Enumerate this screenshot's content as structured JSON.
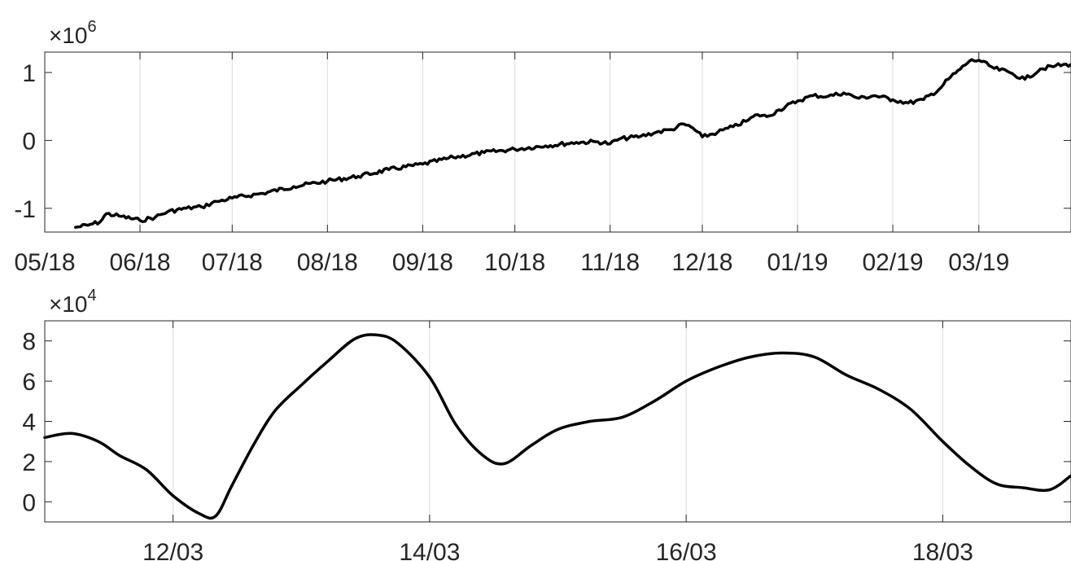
{
  "chart_data": [
    {
      "type": "line",
      "title": "",
      "xlabel": "",
      "ylabel": "",
      "y_exponent_label": {
        "base": "×10",
        "power": "6"
      },
      "x_axis": {
        "type": "date",
        "ticks": [
          "05/18",
          "06/18",
          "07/18",
          "08/18",
          "09/18",
          "10/18",
          "11/18",
          "12/18",
          "01/19",
          "02/19",
          "03/19"
        ]
      },
      "xlim": [
        "2018-05-01",
        "2019-03-31"
      ],
      "ylim": [
        -1.35,
        1.3
      ],
      "y_ticks": [
        -1,
        0,
        1
      ],
      "y_tick_labels": [
        "-1",
        "0",
        "1"
      ],
      "grid": {
        "x": true,
        "y": false
      },
      "series": [
        {
          "color": "#000000",
          "x": [
            "2018-05-11",
            "2018-05-15",
            "2018-05-19",
            "2018-05-21",
            "2018-05-26",
            "2018-06-01",
            "2018-06-06",
            "2018-06-10",
            "2018-06-16",
            "2018-06-21",
            "2018-06-26",
            "2018-07-01",
            "2018-07-11",
            "2018-07-21",
            "2018-08-01",
            "2018-08-11",
            "2018-08-21",
            "2018-09-01",
            "2018-09-11",
            "2018-09-21",
            "2018-10-01",
            "2018-10-11",
            "2018-10-21",
            "2018-10-28",
            "2018-11-01",
            "2018-11-04",
            "2018-11-11",
            "2018-11-16",
            "2018-11-21",
            "2018-11-25",
            "2018-11-28",
            "2018-12-01",
            "2018-12-06",
            "2018-12-11",
            "2018-12-16",
            "2018-12-19",
            "2018-12-22",
            "2018-12-26",
            "2019-01-01",
            "2019-01-06",
            "2019-01-11",
            "2019-01-16",
            "2019-01-21",
            "2019-01-26",
            "2019-02-01",
            "2019-02-06",
            "2019-02-11",
            "2019-02-16",
            "2019-02-19",
            "2019-02-23",
            "2019-02-26",
            "2019-03-01",
            "2019-03-06",
            "2019-03-11",
            "2019-03-16",
            "2019-03-21",
            "2019-03-26",
            "2019-03-31"
          ],
          "values": [
            -1.28,
            -1.25,
            -1.2,
            -1.08,
            -1.12,
            -1.18,
            -1.13,
            -1.05,
            -1.0,
            -0.98,
            -0.9,
            -0.85,
            -0.78,
            -0.68,
            -0.6,
            -0.53,
            -0.43,
            -0.35,
            -0.25,
            -0.18,
            -0.13,
            -0.08,
            -0.03,
            -0.02,
            -0.05,
            0.02,
            0.06,
            0.12,
            0.16,
            0.24,
            0.18,
            0.05,
            0.12,
            0.2,
            0.3,
            0.38,
            0.35,
            0.45,
            0.58,
            0.66,
            0.65,
            0.7,
            0.62,
            0.66,
            0.6,
            0.55,
            0.6,
            0.75,
            0.9,
            1.05,
            1.17,
            1.18,
            1.06,
            1.0,
            0.9,
            1.05,
            1.1,
            1.12
          ]
        }
      ]
    },
    {
      "type": "line",
      "title": "",
      "xlabel": "",
      "ylabel": "",
      "y_exponent_label": {
        "base": "×10",
        "power": "4"
      },
      "x_axis": {
        "type": "date",
        "ticks": [
          "12/03",
          "14/03",
          "16/03",
          "18/03"
        ]
      },
      "xlim": [
        "2019-03-11T00:00",
        "2019-03-19T00:00"
      ],
      "ylim": [
        -1,
        9
      ],
      "y_ticks": [
        0,
        2,
        4,
        6,
        8
      ],
      "y_tick_labels": [
        "0",
        "2",
        "4",
        "6",
        "8"
      ],
      "grid": {
        "x": true,
        "y": false
      },
      "series": [
        {
          "color": "#000000",
          "x": [
            "2019-03-11T00:00",
            "2019-03-11T05:00",
            "2019-03-11T10:00",
            "2019-03-11T14:00",
            "2019-03-11T19:00",
            "2019-03-12T00:00",
            "2019-03-12T05:00",
            "2019-03-12T08:00",
            "2019-03-12T11:00",
            "2019-03-12T15:00",
            "2019-03-12T19:00",
            "2019-03-13T00:00",
            "2019-03-13T05:00",
            "2019-03-13T10:00",
            "2019-03-13T14:00",
            "2019-03-13T18:00",
            "2019-03-14T00:00",
            "2019-03-14T05:00",
            "2019-03-14T10:00",
            "2019-03-14T14:00",
            "2019-03-14T19:00",
            "2019-03-15T00:00",
            "2019-03-15T06:00",
            "2019-03-15T12:00",
            "2019-03-15T18:00",
            "2019-03-16T00:00",
            "2019-03-16T06:00",
            "2019-03-16T12:00",
            "2019-03-16T18:00",
            "2019-03-17T00:00",
            "2019-03-17T06:00",
            "2019-03-17T12:00",
            "2019-03-17T18:00",
            "2019-03-18T00:00",
            "2019-03-18T05:00",
            "2019-03-18T10:00",
            "2019-03-18T15:00",
            "2019-03-18T20:00",
            "2019-03-19T00:00"
          ],
          "values": [
            3.2,
            3.4,
            3.0,
            2.3,
            1.6,
            0.3,
            -0.6,
            -0.7,
            0.8,
            2.8,
            4.5,
            5.8,
            7.0,
            8.1,
            8.3,
            7.9,
            6.2,
            3.8,
            2.3,
            1.9,
            2.8,
            3.6,
            4.0,
            4.2,
            5.0,
            6.0,
            6.7,
            7.2,
            7.4,
            7.2,
            6.3,
            5.6,
            4.6,
            3.0,
            1.8,
            0.9,
            0.7,
            0.6,
            1.3
          ]
        }
      ]
    }
  ]
}
